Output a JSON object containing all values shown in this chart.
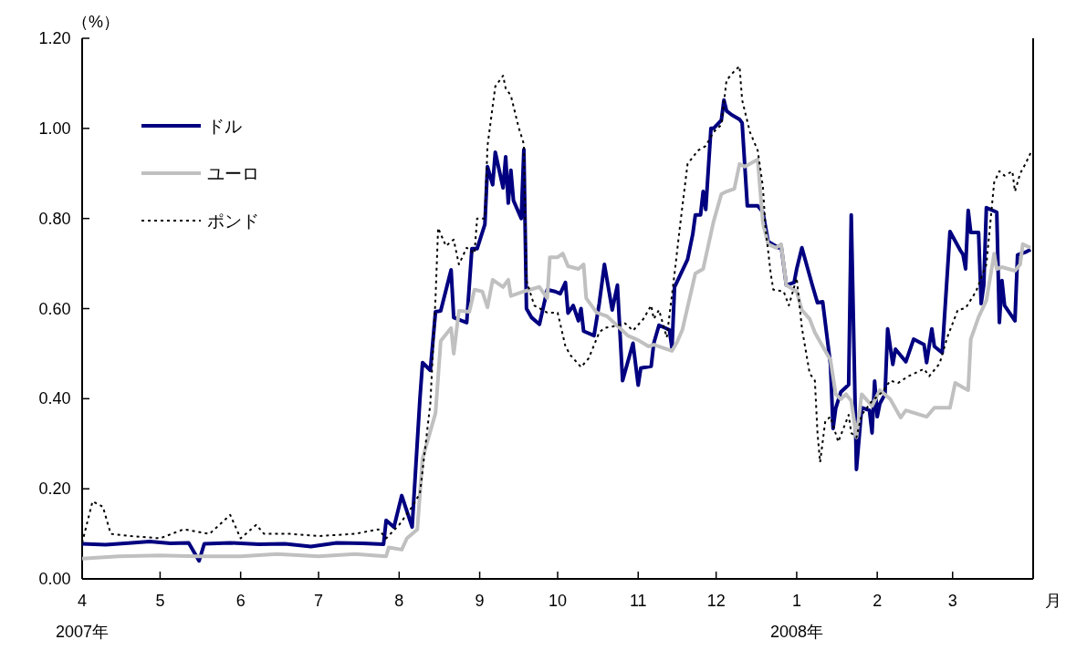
{
  "chart_data": {
    "type": "line",
    "ylabel": "（%）",
    "xlabel": "月",
    "legend": "top left",
    "xlim": [
      "2007-04-01",
      "2008-04-01"
    ],
    "xticks": [
      {
        "value": "2007-04-01",
        "label": "4\n2007年"
      },
      {
        "value": "2007-05-01",
        "label": "5"
      },
      {
        "value": "2007-06-01",
        "label": "6"
      },
      {
        "value": "2007-07-01",
        "label": "7"
      },
      {
        "value": "2007-08-01",
        "label": "8"
      },
      {
        "value": "2007-09-01",
        "label": "9"
      },
      {
        "value": "2007-10-01",
        "label": "10"
      },
      {
        "value": "2007-11-01",
        "label": "11"
      },
      {
        "value": "2007-12-01",
        "label": "12"
      },
      {
        "value": "2008-01-01",
        "label": "1\n2008年"
      },
      {
        "value": "2008-02-01",
        "label": "2"
      },
      {
        "value": "2008-03-01",
        "label": "3"
      }
    ],
    "ylim": [
      0,
      1.2
    ],
    "yticks": [
      {
        "value": 0,
        "label": "0.00"
      },
      {
        "value": 0.2,
        "label": "0.20"
      },
      {
        "value": 0.4,
        "label": "0.40"
      },
      {
        "value": 0.6,
        "label": "0.60"
      },
      {
        "value": 0.8,
        "label": "0.80"
      },
      {
        "value": 1.0,
        "label": "1.00"
      },
      {
        "value": 1.2,
        "label": "1.20"
      }
    ],
    "series": [
      {
        "name": "ドル",
        "color": "#000080",
        "line_style": "solid",
        "x": [
          "2007-04-01",
          "2007-04-10",
          "2007-04-20",
          "2007-04-27",
          "2007-05-05",
          "2007-05-12",
          "2007-05-16",
          "2007-05-18",
          "2007-05-28",
          "2007-06-08",
          "2007-06-18",
          "2007-06-28",
          "2007-07-08",
          "2007-07-18",
          "2007-07-26",
          "2007-07-27",
          "2007-07-30",
          "2007-08-02",
          "2007-08-06",
          "2007-08-09",
          "2007-08-10",
          "2007-08-13",
          "2007-08-15",
          "2007-08-17",
          "2007-08-21",
          "2007-08-22",
          "2007-08-27",
          "2007-08-29",
          "2007-08-31",
          "2007-09-03",
          "2007-09-04",
          "2007-09-06",
          "2007-09-07",
          "2007-09-10",
          "2007-09-11",
          "2007-09-12",
          "2007-09-13",
          "2007-09-14",
          "2007-09-17",
          "2007-09-18",
          "2007-09-19",
          "2007-09-21",
          "2007-09-24",
          "2007-09-27",
          "2007-09-30",
          "2007-10-02",
          "2007-10-04",
          "2007-10-05",
          "2007-10-07",
          "2007-10-09",
          "2007-10-10",
          "2007-10-11",
          "2007-10-15",
          "2007-10-17",
          "2007-10-19",
          "2007-10-22",
          "2007-10-24",
          "2007-10-26",
          "2007-10-30",
          "2007-11-01",
          "2007-11-02",
          "2007-11-06",
          "2007-11-07",
          "2007-11-09",
          "2007-11-13",
          "2007-11-14",
          "2007-11-15",
          "2007-11-20",
          "2007-11-22",
          "2007-11-23",
          "2007-11-25",
          "2007-11-26",
          "2007-11-27",
          "2007-11-29",
          "2007-11-30",
          "2007-12-03",
          "2007-12-04",
          "2007-12-05",
          "2007-12-07",
          "2007-12-10",
          "2007-12-11",
          "2007-12-13",
          "2007-12-17",
          "2007-12-19",
          "2007-12-21",
          "2007-12-25",
          "2007-12-26",
          "2007-12-28",
          "2007-12-31",
          "2008-01-01",
          "2008-01-03",
          "2008-01-07",
          "2008-01-09",
          "2008-01-11",
          "2008-01-14",
          "2008-01-15",
          "2008-01-16",
          "2008-01-18",
          "2008-01-21",
          "2008-01-22",
          "2008-01-24",
          "2008-01-26",
          "2008-01-29",
          "2008-01-30",
          "2008-01-31",
          "2008-02-01",
          "2008-02-02",
          "2008-02-04",
          "2008-02-05",
          "2008-02-07",
          "2008-02-08",
          "2008-02-12",
          "2008-02-15",
          "2008-02-19",
          "2008-02-20",
          "2008-02-22",
          "2008-02-23",
          "2008-02-26",
          "2008-02-29",
          "2008-03-04",
          "2008-03-05",
          "2008-03-06",
          "2008-03-07",
          "2008-03-08",
          "2008-03-11",
          "2008-03-12",
          "2008-03-13",
          "2008-03-14",
          "2008-03-18",
          "2008-03-19",
          "2008-03-20",
          "2008-03-21",
          "2008-03-25",
          "2008-03-26",
          "2008-03-29",
          "2008-03-31"
        ],
        "values": [
          0.078,
          0.076,
          0.08,
          0.083,
          0.079,
          0.08,
          0.04,
          0.078,
          0.08,
          0.077,
          0.078,
          0.072,
          0.08,
          0.079,
          0.077,
          0.13,
          0.115,
          0.185,
          0.115,
          0.4,
          0.48,
          0.463,
          0.593,
          0.595,
          0.686,
          0.58,
          0.569,
          0.733,
          0.733,
          0.787,
          0.915,
          0.875,
          0.947,
          0.868,
          0.937,
          0.834,
          0.907,
          0.84,
          0.8,
          0.953,
          0.6,
          0.58,
          0.565,
          0.642,
          0.638,
          0.633,
          0.658,
          0.59,
          0.607,
          0.573,
          0.6,
          0.55,
          0.54,
          0.611,
          0.698,
          0.597,
          0.652,
          0.44,
          0.523,
          0.43,
          0.468,
          0.472,
          0.523,
          0.563,
          0.553,
          0.512,
          0.648,
          0.709,
          0.765,
          0.808,
          0.808,
          0.86,
          0.82,
          1.0,
          1.0,
          1.018,
          1.063,
          1.039,
          1.03,
          1.02,
          1.012,
          0.828,
          0.828,
          0.814,
          0.749,
          0.735,
          0.74,
          0.652,
          0.658,
          0.688,
          0.735,
          0.652,
          0.613,
          0.615,
          0.476,
          0.334,
          0.378,
          0.415,
          0.431,
          0.808,
          0.243,
          0.38,
          0.374,
          0.324,
          0.439,
          0.36,
          0.389,
          0.41,
          0.555,
          0.476,
          0.51,
          0.482,
          0.532,
          0.52,
          0.48,
          0.555,
          0.516,
          0.502,
          0.771,
          0.729,
          0.72,
          0.688,
          0.818,
          0.769,
          0.769,
          0.611,
          0.652,
          0.824,
          0.814,
          0.569,
          0.662,
          0.607,
          0.573,
          0.719,
          0.725,
          0.731
        ]
      },
      {
        "name": "ユーロ",
        "color": "#c0c0c0",
        "line_style": "solid",
        "x": [
          "2007-04-01",
          "2007-04-15",
          "2007-05-01",
          "2007-05-15",
          "2007-06-01",
          "2007-06-15",
          "2007-07-01",
          "2007-07-15",
          "2007-07-27",
          "2007-07-28",
          "2007-08-02",
          "2007-08-04",
          "2007-08-08",
          "2007-08-10",
          "2007-08-15",
          "2007-08-17",
          "2007-08-21",
          "2007-08-22",
          "2007-08-24",
          "2007-08-28",
          "2007-08-30",
          "2007-09-02",
          "2007-09-04",
          "2007-09-06",
          "2007-09-10",
          "2007-09-12",
          "2007-09-13",
          "2007-09-18",
          "2007-09-24",
          "2007-09-27",
          "2007-09-28",
          "2007-10-01",
          "2007-10-03",
          "2007-10-05",
          "2007-10-09",
          "2007-10-11",
          "2007-10-12",
          "2007-10-16",
          "2007-10-20",
          "2007-10-23",
          "2007-10-28",
          "2007-11-01",
          "2007-11-05",
          "2007-11-07",
          "2007-11-14",
          "2007-11-16",
          "2007-11-18",
          "2007-11-23",
          "2007-11-26",
          "2007-11-30",
          "2007-12-03",
          "2007-12-05",
          "2007-12-08",
          "2007-12-10",
          "2007-12-12",
          "2007-12-17",
          "2007-12-19",
          "2007-12-21",
          "2007-12-24",
          "2007-12-26",
          "2007-12-28",
          "2008-01-01",
          "2008-01-03",
          "2008-01-06",
          "2008-01-08",
          "2008-01-11",
          "2008-01-14",
          "2008-01-16",
          "2008-01-18",
          "2008-01-20",
          "2008-01-22",
          "2008-01-24",
          "2008-01-26",
          "2008-01-30",
          "2008-02-02",
          "2008-02-06",
          "2008-02-10",
          "2008-02-12",
          "2008-02-20",
          "2008-02-23",
          "2008-02-29",
          "2008-03-02",
          "2008-03-05",
          "2008-03-07",
          "2008-03-08",
          "2008-03-11",
          "2008-03-14",
          "2008-03-17",
          "2008-03-18",
          "2008-03-20",
          "2008-03-25",
          "2008-03-27",
          "2008-03-28",
          "2008-03-31"
        ],
        "values": [
          0.045,
          0.05,
          0.052,
          0.05,
          0.05,
          0.055,
          0.05,
          0.055,
          0.05,
          0.07,
          0.065,
          0.09,
          0.11,
          0.267,
          0.368,
          0.528,
          0.557,
          0.5,
          0.595,
          0.593,
          0.642,
          0.638,
          0.603,
          0.664,
          0.648,
          0.664,
          0.628,
          0.638,
          0.648,
          0.623,
          0.714,
          0.714,
          0.722,
          0.694,
          0.688,
          0.698,
          0.623,
          0.591,
          0.583,
          0.567,
          0.54,
          0.53,
          0.516,
          0.52,
          0.506,
          0.526,
          0.553,
          0.678,
          0.688,
          0.793,
          0.854,
          0.86,
          0.866,
          0.921,
          0.915,
          0.931,
          0.79,
          0.743,
          0.735,
          0.743,
          0.652,
          0.638,
          0.597,
          0.577,
          0.547,
          0.516,
          0.486,
          0.41,
          0.399,
          0.41,
          0.395,
          0.314,
          0.41,
          0.384,
          0.419,
          0.399,
          0.358,
          0.374,
          0.36,
          0.38,
          0.38,
          0.435,
          0.425,
          0.419,
          0.532,
          0.581,
          0.618,
          0.722,
          0.688,
          0.692,
          0.684,
          0.698,
          0.743,
          0.735
        ]
      },
      {
        "name": "ポンド",
        "color": "#000000",
        "line_style": "dotted",
        "x": [
          "2007-04-01",
          "2007-04-05",
          "2007-04-09",
          "2007-04-12",
          "2007-04-20",
          "2007-05-01",
          "2007-05-10",
          "2007-05-20",
          "2007-05-28",
          "2007-06-01",
          "2007-06-07",
          "2007-06-10",
          "2007-06-20",
          "2007-07-01",
          "2007-07-15",
          "2007-07-24",
          "2007-07-27",
          "2007-08-01",
          "2007-08-06",
          "2007-08-09",
          "2007-08-13",
          "2007-08-15",
          "2007-08-16",
          "2007-08-19",
          "2007-08-22",
          "2007-08-24",
          "2007-08-27",
          "2007-08-30",
          "2007-08-31",
          "2007-09-03",
          "2007-09-04",
          "2007-09-07",
          "2007-09-10",
          "2007-09-11",
          "2007-09-13",
          "2007-09-16",
          "2007-09-18",
          "2007-09-19",
          "2007-09-22",
          "2007-09-27",
          "2007-10-01",
          "2007-10-04",
          "2007-10-06",
          "2007-10-10",
          "2007-10-13",
          "2007-10-17",
          "2007-10-19",
          "2007-10-22",
          "2007-10-27",
          "2007-10-30",
          "2007-11-03",
          "2007-11-06",
          "2007-11-07",
          "2007-11-09",
          "2007-11-12",
          "2007-11-15",
          "2007-11-17",
          "2007-11-20",
          "2007-11-24",
          "2007-11-27",
          "2007-11-30",
          "2007-12-03",
          "2007-12-05",
          "2007-12-08",
          "2007-12-10",
          "2007-12-11",
          "2007-12-14",
          "2007-12-17",
          "2007-12-19",
          "2007-12-20",
          "2007-12-22",
          "2007-12-23",
          "2007-12-27",
          "2007-12-29",
          "2008-01-01",
          "2008-01-03",
          "2008-01-06",
          "2008-01-08",
          "2008-01-09",
          "2008-01-10",
          "2008-01-12",
          "2008-01-14",
          "2008-01-17",
          "2008-01-19",
          "2008-01-21",
          "2008-01-22",
          "2008-01-24",
          "2008-01-26",
          "2008-01-30",
          "2008-02-03",
          "2008-02-06",
          "2008-02-09",
          "2008-02-13",
          "2008-02-19",
          "2008-02-21",
          "2008-02-25",
          "2008-02-28",
          "2008-03-03",
          "2008-03-06",
          "2008-03-10",
          "2008-03-14",
          "2008-03-16",
          "2008-03-17",
          "2008-03-19",
          "2008-03-21",
          "2008-03-24",
          "2008-03-25",
          "2008-03-27",
          "2008-03-29",
          "2008-03-31"
        ],
        "values": [
          0.08,
          0.172,
          0.16,
          0.1,
          0.095,
          0.09,
          0.11,
          0.1,
          0.142,
          0.09,
          0.12,
          0.1,
          0.1,
          0.095,
          0.1,
          0.11,
          0.09,
          0.12,
          0.16,
          0.19,
          0.389,
          0.623,
          0.779,
          0.739,
          0.753,
          0.698,
          0.735,
          0.722,
          0.8,
          0.8,
          0.961,
          1.093,
          1.117,
          1.089,
          1.073,
          1.002,
          0.965,
          0.662,
          0.607,
          0.591,
          0.591,
          0.516,
          0.496,
          0.47,
          0.49,
          0.547,
          0.557,
          0.56,
          0.567,
          0.551,
          0.577,
          0.607,
          0.577,
          0.597,
          0.536,
          0.678,
          0.779,
          0.921,
          0.951,
          0.961,
          0.992,
          1.008,
          1.107,
          1.127,
          1.138,
          1.063,
          0.992,
          0.951,
          0.87,
          0.779,
          0.678,
          0.642,
          0.638,
          0.607,
          0.668,
          0.557,
          0.456,
          0.44,
          0.324,
          0.259,
          0.35,
          0.36,
          0.304,
          0.334,
          0.364,
          0.324,
          0.314,
          0.364,
          0.395,
          0.415,
          0.44,
          0.435,
          0.45,
          0.466,
          0.45,
          0.478,
          0.537,
          0.597,
          0.601,
          0.638,
          0.698,
          0.82,
          0.88,
          0.905,
          0.895,
          0.905,
          0.86,
          0.9,
          0.921,
          0.945
        ]
      }
    ]
  }
}
